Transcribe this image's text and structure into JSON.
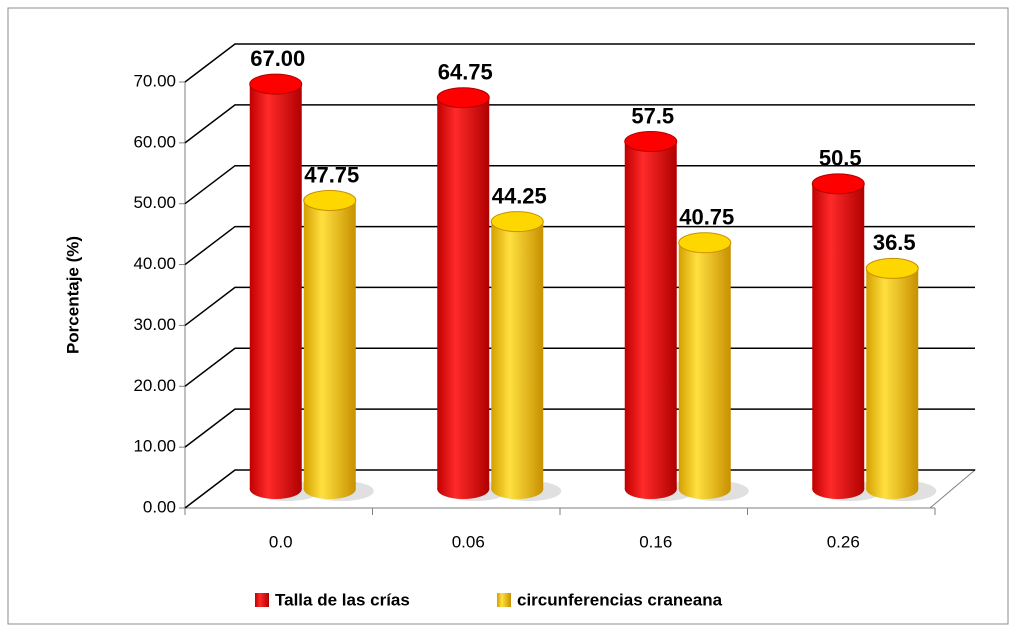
{
  "chart_data": {
    "type": "bar3d",
    "ylabel": "Porcentaje (%)",
    "categories": [
      "0.0",
      "0.06",
      "0.16",
      "0.26"
    ],
    "series": [
      {
        "name": "Talla de las crías",
        "color": "#ff0000",
        "values": [
          67,
          64.75,
          57.5,
          50.5
        ],
        "value_labels": [
          "67.00",
          "64.75",
          "57.5",
          "50.5"
        ]
      },
      {
        "name": "circunferencias craneana",
        "color": "#ffd700",
        "values": [
          47.75,
          44.25,
          40.75,
          36.5
        ],
        "value_labels": [
          "47.75",
          "44.25",
          "40.75",
          "36.5"
        ]
      }
    ],
    "ylim": [
      0,
      70
    ],
    "yticks": [
      {
        "value": 0,
        "label": "0.00"
      },
      {
        "value": 10,
        "label": "10.00"
      },
      {
        "value": 20,
        "label": "20.00"
      },
      {
        "value": 30,
        "label": "30.00"
      },
      {
        "value": 40,
        "label": "40.00"
      },
      {
        "value": 50,
        "label": "50.00"
      },
      {
        "value": 60,
        "label": "60.00"
      },
      {
        "value": 70,
        "label": "70.00"
      }
    ],
    "grid": true,
    "legend": "bottom"
  }
}
